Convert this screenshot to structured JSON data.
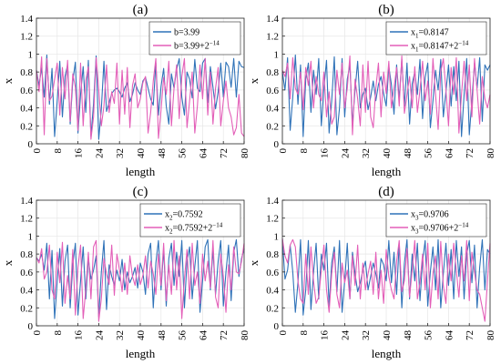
{
  "chart_data": [
    {
      "type": "line",
      "title": "(a)",
      "xlabel": "length",
      "ylabel": "x",
      "xlim": [
        0,
        80
      ],
      "ylim": [
        0,
        1.4
      ],
      "xticks": [
        0,
        8,
        16,
        24,
        32,
        40,
        48,
        56,
        64,
        72,
        80
      ],
      "yticks": [
        0,
        0.2,
        0.4,
        0.6,
        0.8,
        1,
        1.2,
        1.4
      ],
      "grid": true,
      "legend_position": "top-right",
      "series": [
        {
          "legend_base": "b=3.99",
          "legend_sub": "",
          "legend_mid": "",
          "legend_sup": "",
          "color": "#2f72b8",
          "values": [
            0.82,
            0.65,
            0.85,
            0.52,
            0.99,
            0.44,
            0.84,
            0.08,
            0.48,
            0.92,
            0.3,
            0.75,
            0.88,
            0.22,
            0.7,
            0.91,
            0.12,
            0.55,
            0.86,
            0.35,
            0.93,
            0.08,
            0.45,
            0.98,
            0.05,
            0.39,
            0.92,
            0.36,
            0.46,
            0.56,
            0.6,
            0.62,
            0.58,
            0.52,
            0.62,
            0.68,
            0.47,
            0.55,
            0.68,
            0.6,
            0.55,
            0.7,
            0.74,
            0.62,
            0.5,
            0.43,
            0.9,
            0.32,
            0.64,
            0.84,
            0.42,
            0.22,
            0.78,
            0.62,
            0.83,
            0.95,
            0.52,
            0.32,
            0.8,
            0.72,
            0.51,
            0.94,
            0.62,
            0.58,
            0.9,
            0.95,
            0.46,
            0.86,
            0.63,
            0.39,
            0.58,
            0.9,
            0.52,
            0.91,
            0.86,
            0.63,
            0.95,
            0.52,
            0.92,
            0.86,
            0.85
          ]
        },
        {
          "legend_base": "b=3.99+2",
          "legend_sub": "",
          "legend_mid": "",
          "legend_sup": "−14",
          "color": "#e35fb8",
          "values": [
            0.82,
            0.58,
            0.97,
            0.1,
            0.95,
            0.48,
            0.53,
            0.72,
            0.9,
            0.32,
            0.85,
            0.5,
            0.93,
            0.25,
            0.78,
            0.63,
            0.15,
            0.9,
            0.2,
            0.7,
            0.86,
            0.05,
            0.3,
            0.96,
            0.6,
            0.2,
            0.42,
            0.88,
            0.35,
            0.58,
            0.45,
            0.9,
            0.22,
            0.82,
            0.33,
            0.85,
            0.18,
            0.65,
            0.78,
            0.4,
            0.5,
            0.68,
            0.75,
            0.12,
            0.35,
            0.7,
            0.95,
            0.06,
            0.38,
            0.74,
            0.55,
            0.92,
            0.2,
            0.62,
            0.88,
            0.28,
            0.75,
            0.95,
            0.18,
            0.48,
            0.8,
            0.12,
            0.42,
            0.88,
            0.5,
            0.95,
            0.32,
            0.8,
            0.22,
            0.62,
            0.85,
            0.2,
            0.48,
            0.7,
            0.4,
            0.3,
            0.1,
            0.18,
            0.55,
            0.12,
            0.08
          ]
        }
      ]
    },
    {
      "type": "line",
      "title": "(b)",
      "xlabel": "length",
      "ylabel": "x",
      "xlim": [
        0,
        80
      ],
      "ylim": [
        0,
        1.4
      ],
      "xticks": [
        0,
        8,
        16,
        24,
        32,
        40,
        48,
        56,
        64,
        72,
        80
      ],
      "yticks": [
        0,
        0.2,
        0.4,
        0.6,
        0.8,
        1,
        1.2,
        1.4
      ],
      "grid": true,
      "legend_position": "top-right",
      "series": [
        {
          "legend_base": "x",
          "legend_sub": "1",
          "legend_mid": "=0.8147",
          "legend_sup": "",
          "color": "#2f72b8",
          "values": [
            0.8,
            0.6,
            0.96,
            0.15,
            0.52,
            0.99,
            0.44,
            0.88,
            0.08,
            0.72,
            0.9,
            0.35,
            0.82,
            0.55,
            0.95,
            0.2,
            0.62,
            0.93,
            0.12,
            0.48,
            0.97,
            0.1,
            0.4,
            0.95,
            0.3,
            0.72,
            0.88,
            0.22,
            0.6,
            0.92,
            0.4,
            0.55,
            0.62,
            0.38,
            0.52,
            0.7,
            0.48,
            0.66,
            0.75,
            0.56,
            0.42,
            0.86,
            0.66,
            0.33,
            0.88,
            0.5,
            0.94,
            0.42,
            0.9,
            0.22,
            0.67,
            0.8,
            0.55,
            0.94,
            0.28,
            0.74,
            0.9,
            0.18,
            0.48,
            0.82,
            0.6,
            0.94,
            0.3,
            0.58,
            0.88,
            0.42,
            0.86,
            0.48,
            0.92,
            0.08,
            0.55,
            0.95,
            0.1,
            0.48,
            0.9,
            0.62,
            0.96,
            0.25,
            0.88,
            0.82,
            0.88
          ]
        },
        {
          "legend_base": "x",
          "legend_sub": "1",
          "legend_mid": "=0.8147+2",
          "legend_sup": "−14",
          "color": "#e35fb8",
          "values": [
            0.82,
            0.75,
            0.9,
            0.5,
            0.96,
            0.62,
            0.55,
            0.8,
            0.38,
            0.85,
            0.65,
            0.92,
            0.4,
            0.75,
            0.55,
            0.48,
            0.8,
            0.3,
            0.58,
            0.22,
            0.3,
            0.82,
            0.55,
            0.9,
            0.4,
            0.62,
            0.98,
            0.1,
            0.72,
            0.5,
            0.2,
            0.88,
            0.35,
            0.92,
            0.3,
            0.18,
            0.62,
            0.9,
            0.3,
            0.8,
            0.56,
            0.92,
            0.4,
            0.62,
            0.85,
            0.42,
            0.98,
            0.34,
            0.55,
            0.75,
            0.4,
            0.86,
            0.35,
            0.6,
            0.92,
            0.48,
            0.7,
            0.33,
            0.95,
            0.55,
            0.16,
            0.8,
            0.95,
            0.6,
            0.2,
            0.85,
            0.55,
            0.96,
            0.12,
            0.55,
            0.92,
            0.48,
            0.88,
            0.3,
            0.95,
            0.6,
            0.22,
            0.75,
            0.5,
            0.4,
            0.55
          ]
        }
      ]
    },
    {
      "type": "line",
      "title": "(c)",
      "xlabel": "length",
      "ylabel": "x",
      "xlim": [
        0,
        80
      ],
      "ylim": [
        0,
        1.4
      ],
      "xticks": [
        0,
        8,
        16,
        24,
        32,
        40,
        48,
        56,
        64,
        72,
        80
      ],
      "yticks": [
        0,
        0.2,
        0.4,
        0.6,
        0.8,
        1,
        1.2,
        1.4
      ],
      "grid": true,
      "legend_position": "top-right",
      "series": [
        {
          "legend_base": "x",
          "legend_sub": "2",
          "legend_mid": "=0.7592",
          "legend_sup": "",
          "color": "#2f72b8",
          "values": [
            0.76,
            0.72,
            0.8,
            0.62,
            0.92,
            0.3,
            0.84,
            0.08,
            0.5,
            0.86,
            0.22,
            0.72,
            0.9,
            0.2,
            0.68,
            0.92,
            0.12,
            0.5,
            0.88,
            0.3,
            0.75,
            0.52,
            0.62,
            0.78,
            0.1,
            0.6,
            0.95,
            0.18,
            0.68,
            0.55,
            0.45,
            0.62,
            0.5,
            0.74,
            0.4,
            0.6,
            0.48,
            0.55,
            0.65,
            0.42,
            0.7,
            0.6,
            0.35,
            0.8,
            0.92,
            0.2,
            0.7,
            0.95,
            0.4,
            0.86,
            0.22,
            0.75,
            0.92,
            0.45,
            0.82,
            0.55,
            0.95,
            0.2,
            0.72,
            0.88,
            0.3,
            0.66,
            0.95,
            0.15,
            0.5,
            0.88,
            0.96,
            0.4,
            0.85,
            0.35,
            0.72,
            0.95,
            0.22,
            0.6,
            0.9,
            0.28,
            0.82,
            0.96,
            0.55,
            0.75,
            0.86
          ]
        },
        {
          "legend_base": "x",
          "legend_sub": "2",
          "legend_mid": "=0.7592+2",
          "legend_sup": "−14",
          "color": "#e35fb8",
          "values": [
            0.76,
            0.7,
            0.86,
            0.52,
            0.6,
            0.9,
            0.4,
            0.3,
            0.82,
            0.48,
            0.93,
            0.25,
            0.56,
            0.3,
            0.85,
            0.12,
            0.65,
            0.9,
            0.08,
            0.4,
            0.82,
            0.3,
            0.88,
            0.95,
            0.05,
            0.3,
            0.75,
            0.58,
            0.46,
            0.9,
            0.34,
            0.8,
            0.62,
            0.38,
            0.7,
            0.35,
            0.78,
            0.55,
            0.45,
            0.68,
            0.46,
            0.56,
            0.78,
            0.42,
            0.72,
            0.58,
            0.35,
            0.8,
            0.45,
            0.92,
            0.28,
            0.68,
            0.35,
            0.95,
            0.4,
            0.78,
            0.08,
            0.52,
            0.85,
            0.3,
            0.92,
            0.45,
            0.6,
            0.25,
            0.8,
            0.5,
            0.72,
            0.42,
            0.95,
            0.32,
            0.2,
            0.8,
            0.55,
            0.15,
            0.68,
            0.4,
            0.88,
            0.6,
            0.58,
            0.72,
            0.92
          ]
        }
      ]
    },
    {
      "type": "line",
      "title": "(d)",
      "xlabel": "length",
      "ylabel": "x",
      "xlim": [
        0,
        80
      ],
      "ylim": [
        0,
        1.4
      ],
      "xticks": [
        0,
        8,
        16,
        24,
        32,
        40,
        48,
        56,
        64,
        72,
        80
      ],
      "yticks": [
        0,
        0.2,
        0.4,
        0.6,
        0.8,
        1,
        1.2,
        1.4
      ],
      "grid": true,
      "legend_position": "top-right",
      "series": [
        {
          "legend_base": "x",
          "legend_sub": "3",
          "legend_mid": "=0.9706",
          "legend_sup": "",
          "color": "#2f72b8",
          "values": [
            0.97,
            0.52,
            0.62,
            0.9,
            0.6,
            0.15,
            0.48,
            0.96,
            0.12,
            0.4,
            0.95,
            0.18,
            0.6,
            0.92,
            0.3,
            0.8,
            0.62,
            0.92,
            0.22,
            0.7,
            0.88,
            0.38,
            0.95,
            0.15,
            0.5,
            0.92,
            0.3,
            0.82,
            0.58,
            0.38,
            0.48,
            0.62,
            0.72,
            0.4,
            0.55,
            0.7,
            0.58,
            0.42,
            0.75,
            0.68,
            0.5,
            0.95,
            0.48,
            0.82,
            0.35,
            0.92,
            0.2,
            0.7,
            0.96,
            0.3,
            0.8,
            0.5,
            0.92,
            0.28,
            0.72,
            0.95,
            0.22,
            0.6,
            0.88,
            0.4,
            0.96,
            0.2,
            0.58,
            0.92,
            0.45,
            0.85,
            0.3,
            0.95,
            0.55,
            0.88,
            0.3,
            0.8,
            0.95,
            0.48,
            0.9,
            0.2,
            0.65,
            0.96,
            0.4,
            0.85,
            0.8
          ]
        },
        {
          "legend_base": "x",
          "legend_sub": "3",
          "legend_mid": "=0.9706+2",
          "legend_sup": "−14",
          "color": "#e35fb8",
          "values": [
            0.97,
            0.78,
            0.7,
            0.9,
            0.96,
            0.88,
            0.5,
            0.3,
            0.25,
            0.8,
            0.35,
            0.88,
            0.5,
            0.25,
            0.32,
            0.62,
            0.9,
            0.4,
            0.15,
            0.58,
            0.82,
            0.35,
            0.2,
            0.7,
            0.48,
            0.62,
            0.3,
            0.78,
            0.45,
            0.9,
            0.3,
            0.7,
            0.4,
            0.58,
            0.72,
            0.35,
            0.82,
            0.3,
            0.62,
            0.25,
            0.85,
            0.55,
            0.4,
            0.3,
            0.72,
            0.95,
            0.38,
            0.5,
            0.86,
            0.32,
            0.62,
            0.95,
            0.3,
            0.48,
            0.8,
            0.4,
            0.92,
            0.2,
            0.58,
            0.78,
            0.3,
            0.94,
            0.45,
            0.25,
            0.8,
            0.5,
            0.92,
            0.62,
            0.32,
            0.78,
            0.5,
            0.95,
            0.28,
            0.82,
            0.6,
            0.4,
            0.35,
            0.2,
            0.05,
            0.5,
            0.92
          ]
        }
      ]
    }
  ]
}
